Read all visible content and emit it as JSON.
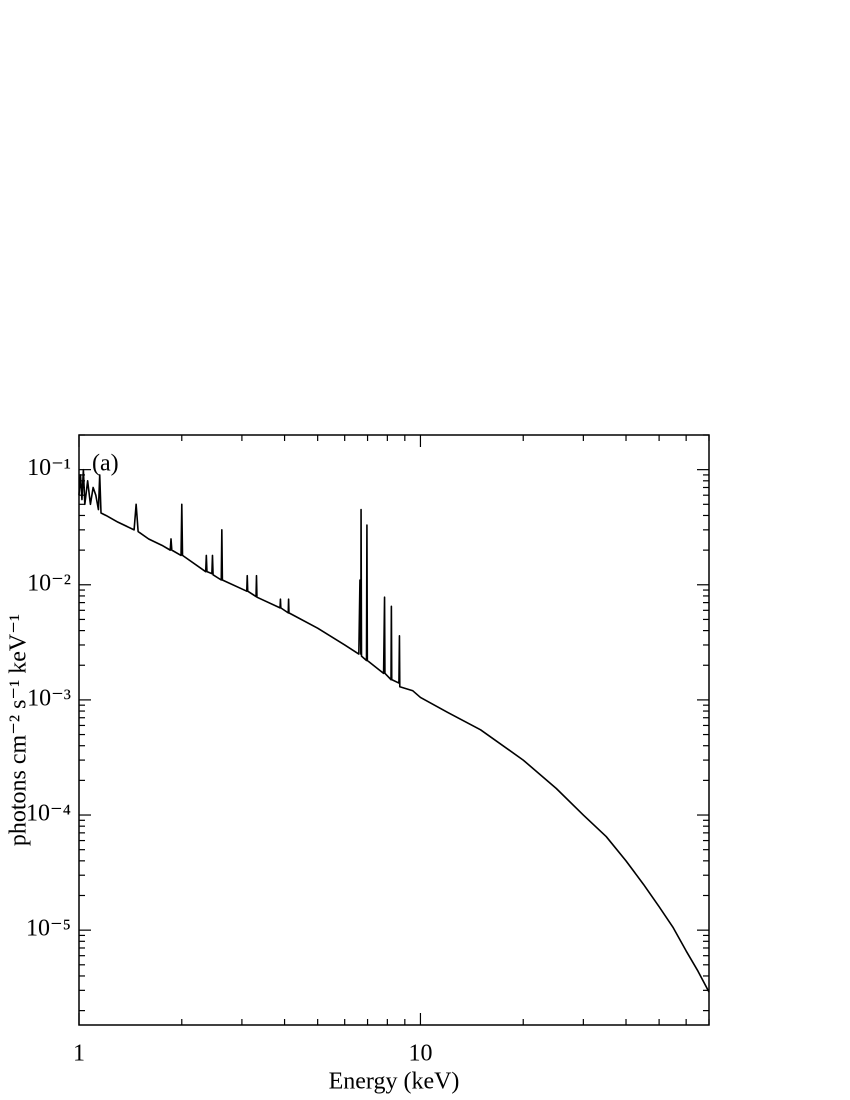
{
  "chart_data": {
    "type": "line",
    "annotation": "(a)",
    "x_label": "Energy (keV)",
    "y_label": "photons cm⁻² s⁻¹ keV⁻¹",
    "x_log": true,
    "y_log": true,
    "grid": false,
    "color": "#000000",
    "xlim": [
      1,
      70
    ],
    "ylim": [
      1.5e-06,
      0.2
    ],
    "xticks": [
      1,
      10
    ],
    "yticks": [
      {
        "value": 1e-05,
        "label": "10⁻⁵"
      },
      {
        "value": 0.0001,
        "label": "10⁻⁴"
      },
      {
        "value": 0.001,
        "label": "10⁻³"
      },
      {
        "value": 0.01,
        "label": "10⁻²"
      },
      {
        "value": 0.1,
        "label": "10⁻¹"
      }
    ],
    "x": [
      1.0,
      1.01,
      1.02,
      1.03,
      1.04,
      1.06,
      1.08,
      1.1,
      1.12,
      1.14,
      1.15,
      1.16,
      1.2,
      1.3,
      1.45,
      1.47,
      1.49,
      1.6,
      1.75,
      1.85,
      1.86,
      1.87,
      1.99,
      2.0,
      2.01,
      2.35,
      2.36,
      2.37,
      2.45,
      2.46,
      2.47,
      2.61,
      2.62,
      2.63,
      3.1,
      3.11,
      3.12,
      3.3,
      3.31,
      3.32,
      3.88,
      3.89,
      3.9,
      4.1,
      4.11,
      4.12,
      5.0,
      6.0,
      6.6,
      6.65,
      6.69,
      6.7,
      6.72,
      6.95,
      6.97,
      6.99,
      7.8,
      7.85,
      7.87,
      8.2,
      8.22,
      8.24,
      8.65,
      8.68,
      8.7,
      9.5,
      10,
      12,
      15,
      20,
      25,
      30,
      35,
      40,
      45,
      50,
      55,
      60,
      65,
      70
    ],
    "values": [
      0.06,
      0.09,
      0.055,
      0.1,
      0.05,
      0.08,
      0.05,
      0.07,
      0.06,
      0.045,
      0.09,
      0.042,
      0.04,
      0.035,
      0.03,
      0.05,
      0.029,
      0.025,
      0.022,
      0.02,
      0.025,
      0.02,
      0.018,
      0.05,
      0.018,
      0.013,
      0.018,
      0.013,
      0.0125,
      0.018,
      0.0122,
      0.011,
      0.03,
      0.011,
      0.0088,
      0.012,
      0.0088,
      0.0079,
      0.012,
      0.0078,
      0.0063,
      0.0075,
      0.0063,
      0.0057,
      0.0075,
      0.0057,
      0.0042,
      0.003,
      0.0025,
      0.011,
      0.0025,
      0.045,
      0.0024,
      0.0022,
      0.033,
      0.0022,
      0.0017,
      0.0078,
      0.0017,
      0.0015,
      0.0065,
      0.0015,
      0.0014,
      0.0036,
      0.0013,
      0.0012,
      0.00105,
      0.00078,
      0.00055,
      0.0003,
      0.00017,
      0.0001,
      6.5e-05,
      4e-05,
      2.5e-05,
      1.6e-05,
      1.05e-05,
      6.6e-06,
      4.4e-06,
      2.9e-06
    ]
  }
}
